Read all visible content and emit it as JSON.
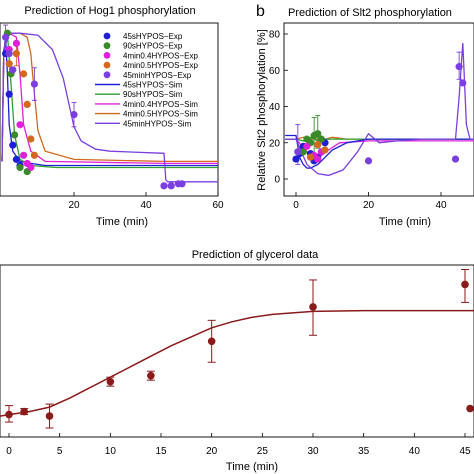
{
  "chart_data": [
    {
      "type": "line",
      "panel_letter": "",
      "title": "Prediction of Hog1 phosphorylation",
      "xlabel": "Time (min)",
      "ylabel": "",
      "xlim": [
        0,
        60
      ],
      "ylim": [
        0,
        85
      ],
      "xticks": [
        20,
        40,
        60
      ],
      "legend": {
        "position": "top-right",
        "entries": [
          {
            "label": "45sHYPOS−Exp",
            "kind": "marker",
            "color": "#1f1fd6"
          },
          {
            "label": "90sHYPOS−Exp",
            "kind": "marker",
            "color": "#3a8a2a"
          },
          {
            "label": "4min0.4HYPOS−Exp",
            "kind": "marker",
            "color": "#e020d8"
          },
          {
            "label": "4min0.5HYPOS−Exp",
            "kind": "marker",
            "color": "#d2691e"
          },
          {
            "label": "45minHYPOS−Exp",
            "kind": "marker",
            "color": "#7b3fe0"
          },
          {
            "label": "45sHYPOS−Sim",
            "kind": "line",
            "color": "#1f1fd6"
          },
          {
            "label": "90sHYPOS−Sim",
            "kind": "line",
            "color": "#2fa02f"
          },
          {
            "label": "4min0.4HYPOS−Sim",
            "kind": "line",
            "color": "#e020d8"
          },
          {
            "label": "4min0.5HYPOS−Sim",
            "kind": "line",
            "color": "#d2691e"
          },
          {
            "label": "45minHYPOS−Sim",
            "kind": "line",
            "color": "#7b3fe0"
          }
        ]
      },
      "lines": [
        {
          "color": "#1f1fd6",
          "x": [
            0,
            0.5,
            1,
            1.5,
            2,
            3,
            5,
            8,
            12,
            20,
            45,
            60
          ],
          "y": [
            17,
            70,
            78,
            60,
            35,
            22,
            17,
            16,
            15,
            15,
            15,
            15
          ]
        },
        {
          "color": "#2fa02f",
          "x": [
            0,
            0.5,
            1.5,
            2.5,
            3.5,
            5,
            8,
            15,
            45,
            60
          ],
          "y": [
            17,
            70,
            80,
            55,
            30,
            18,
            15,
            14,
            14,
            14
          ]
        },
        {
          "color": "#e020d8",
          "x": [
            0,
            0.5,
            2,
            4,
            5,
            6,
            8,
            12,
            45,
            60
          ],
          "y": [
            17,
            72,
            80,
            78,
            60,
            35,
            22,
            17,
            16,
            16
          ]
        },
        {
          "color": "#d2691e",
          "x": [
            0,
            0.5,
            2,
            5,
            7,
            8,
            9,
            10,
            12,
            20,
            45,
            60
          ],
          "y": [
            17,
            72,
            80,
            80,
            78,
            70,
            50,
            32,
            22,
            18,
            17,
            17
          ]
        },
        {
          "color": "#7b3fe0",
          "x": [
            0,
            0.5,
            2,
            5,
            10,
            14,
            17,
            19,
            20,
            22,
            26,
            30,
            45,
            45.5,
            46,
            60
          ],
          "y": [
            17,
            72,
            80,
            80,
            79,
            72,
            58,
            42,
            34,
            27,
            23,
            22,
            21,
            8,
            7,
            7
          ]
        }
      ],
      "points": [
        {
          "color": "#1f1fd6",
          "x": [
            1,
            2,
            3,
            4,
            5
          ],
          "y": [
            70,
            50,
            25,
            18,
            15
          ]
        },
        {
          "color": "#3a8a2a",
          "x": [
            1.5,
            2.5,
            3.5,
            5,
            7
          ],
          "y": [
            80,
            60,
            30,
            14,
            12
          ]
        },
        {
          "color": "#e020d8",
          "x": [
            2,
            4,
            5,
            6,
            7,
            8
          ],
          "y": [
            72,
            75,
            35,
            20,
            16,
            14
          ]
        },
        {
          "color": "#d2691e",
          "x": [
            2,
            4,
            6,
            7,
            8,
            9
          ],
          "y": [
            65,
            70,
            60,
            45,
            28,
            20
          ]
        },
        {
          "color": "#7b3fe0",
          "x": [
            1,
            2,
            3,
            9,
            20,
            45,
            47,
            49,
            50
          ],
          "y": [
            78,
            70,
            62,
            55,
            40,
            5,
            5,
            6,
            6
          ]
        }
      ],
      "errorbars": [
        {
          "color": "#7b3fe0",
          "x": 9,
          "y": 55,
          "lo": 47,
          "hi": 63
        },
        {
          "color": "#7b3fe0",
          "x": 1,
          "y": 78,
          "lo": 72,
          "hi": 84
        },
        {
          "color": "#d2691e",
          "x": 4,
          "y": 70,
          "lo": 64,
          "hi": 76
        },
        {
          "color": "#7b3fe0",
          "x": 20,
          "y": 40,
          "lo": 34,
          "hi": 46
        }
      ]
    },
    {
      "type": "line",
      "panel_letter": "b",
      "title": "Prediction of Slt2 phosphorylation",
      "xlabel": "Time (min)",
      "ylabel": "Relative Slt2 phosphorylation [%]",
      "xlim": [
        -3,
        50
      ],
      "ylim": [
        -5,
        85
      ],
      "xticks": [
        0,
        20,
        40
      ],
      "yticks": [
        0,
        20,
        40,
        60,
        80
      ],
      "lines": [
        {
          "color": "#d2691e",
          "x": [
            -3,
            0,
            2,
            4,
            6,
            8,
            10,
            14,
            20,
            45,
            46,
            47,
            50
          ],
          "y": [
            22,
            22,
            23,
            22,
            22,
            22,
            23,
            22,
            22,
            22,
            22,
            22,
            22
          ]
        },
        {
          "color": "#2fa02f",
          "x": [
            -3,
            0,
            2,
            4,
            6,
            8,
            12,
            20,
            45,
            50
          ],
          "y": [
            22,
            22,
            21,
            23,
            21,
            22,
            22,
            22,
            22,
            22
          ]
        },
        {
          "color": "#e020d8",
          "x": [
            -3,
            0,
            3,
            5,
            7,
            9,
            12,
            20,
            45,
            50
          ],
          "y": [
            22,
            22,
            15,
            12,
            13,
            16,
            20,
            21,
            21,
            21
          ]
        },
        {
          "color": "#1f1fd6",
          "x": [
            -3,
            0,
            1,
            2,
            3,
            4,
            6,
            8,
            10,
            14,
            20,
            45,
            50
          ],
          "y": [
            24,
            24,
            12,
            8,
            6,
            6,
            8,
            12,
            16,
            20,
            22,
            22,
            22
          ]
        },
        {
          "color": "#7b3fe0",
          "x": [
            -3,
            0,
            3,
            6,
            9,
            13,
            17,
            20,
            23,
            28,
            35,
            44,
            45,
            46,
            47,
            48,
            50
          ],
          "y": [
            22,
            22,
            8,
            3,
            2,
            5,
            15,
            25,
            20,
            21,
            22,
            22,
            45,
            75,
            30,
            22,
            22
          ]
        }
      ],
      "points": [
        {
          "color": "#1f1fd6",
          "x": [
            0,
            1,
            2,
            4,
            5,
            6,
            8
          ],
          "y": [
            11,
            14,
            18,
            14,
            10,
            12,
            20
          ]
        },
        {
          "color": "#3a8a2a",
          "x": [
            2,
            3,
            4,
            5,
            6,
            7
          ],
          "y": [
            15,
            22,
            20,
            24,
            25,
            22
          ]
        },
        {
          "color": "#e020d8",
          "x": [
            3,
            5,
            6,
            7
          ],
          "y": [
            18,
            13,
            11,
            15
          ]
        },
        {
          "color": "#d2691e",
          "x": [
            4,
            6,
            8
          ],
          "y": [
            12,
            19,
            16
          ]
        },
        {
          "color": "#7b3fe0",
          "x": [
            0.5,
            20,
            44,
            45,
            46
          ],
          "y": [
            15,
            10,
            11,
            62,
            53
          ]
        }
      ],
      "errorbars": [
        {
          "color": "#3a8a2a",
          "x": 5,
          "y": 24,
          "lo": 14,
          "hi": 34
        },
        {
          "color": "#3a8a2a",
          "x": 6,
          "y": 25,
          "lo": 17,
          "hi": 35
        },
        {
          "color": "#7b3fe0",
          "x": 0.5,
          "y": 15,
          "lo": 8,
          "hi": 30
        },
        {
          "color": "#7b3fe0",
          "x": 45,
          "y": 62,
          "lo": 55,
          "hi": 70
        }
      ]
    },
    {
      "type": "line",
      "panel_letter": "",
      "title": "Prediction of glycerol data",
      "xlabel": "Time (min)",
      "ylabel": "",
      "xlim": [
        -1,
        50
      ],
      "ylim": [
        0,
        1.15
      ],
      "xticks": [
        0,
        5,
        10,
        15,
        20,
        25,
        30,
        35,
        40,
        45
      ],
      "line": {
        "color": "#8b1a1a",
        "x": [
          -1,
          0,
          2,
          4,
          6,
          8,
          10,
          12,
          14,
          16,
          18,
          20,
          22,
          24,
          26,
          28,
          30,
          35,
          40,
          45,
          50
        ],
        "y": [
          0.14,
          0.15,
          0.17,
          0.2,
          0.26,
          0.33,
          0.4,
          0.47,
          0.54,
          0.61,
          0.67,
          0.73,
          0.77,
          0.8,
          0.82,
          0.83,
          0.84,
          0.845,
          0.845,
          0.845,
          0.845
        ]
      },
      "points": [
        {
          "x": 0,
          "y": 0.15,
          "lo": 0.1,
          "hi": 0.21
        },
        {
          "x": 1.5,
          "y": 0.17,
          "lo": 0.15,
          "hi": 0.19
        },
        {
          "x": 4,
          "y": 0.14,
          "lo": 0.06,
          "hi": 0.22
        },
        {
          "x": 10,
          "y": 0.37,
          "lo": 0.34,
          "hi": 0.4
        },
        {
          "x": 14,
          "y": 0.41,
          "lo": 0.38,
          "hi": 0.44
        },
        {
          "x": 20,
          "y": 0.64,
          "lo": 0.5,
          "hi": 0.78
        },
        {
          "x": 30,
          "y": 0.87,
          "lo": 0.68,
          "hi": 1.05
        },
        {
          "x": 45,
          "y": 1.02,
          "lo": 0.9,
          "hi": 1.12
        },
        {
          "x": 45.5,
          "y": 0.19,
          "lo": 0.19,
          "hi": 0.19
        }
      ],
      "color": "#8b1a1a"
    }
  ]
}
